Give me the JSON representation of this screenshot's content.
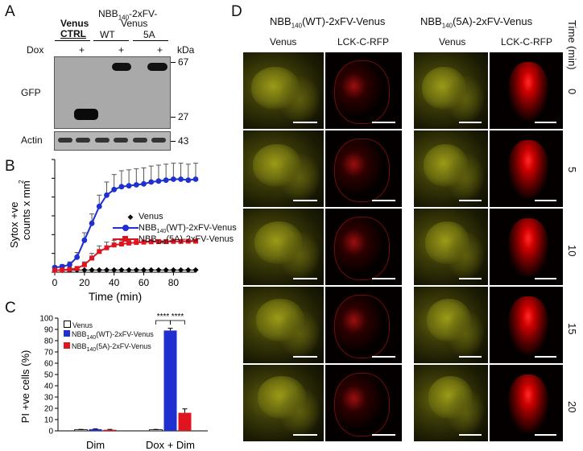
{
  "panels": {
    "a": "A",
    "b": "B",
    "c": "C",
    "d": "D"
  },
  "panelA": {
    "venus_label": "Venus",
    "ctrl_label": "CTRL",
    "construct_label_1": "NBB",
    "construct_sub": "140",
    "construct_label_2": "-2xFV-",
    "construct_label_3": "Venus",
    "wt_label": "WT",
    "fiveA_label": "5A",
    "dox_label": "Dox",
    "plus": "+",
    "kda_label": "kDa",
    "gfp_label": "GFP",
    "actin_label": "Actin",
    "mw_67": "67",
    "mw_27": "27",
    "mw_43": "43"
  },
  "chart_data": [
    {
      "type": "line",
      "ylabel_line1": "Sytox +ve",
      "ylabel_line2": "counts x mm",
      "ylabel_sup": "2",
      "xlabel": "Time (min)",
      "xlim": [
        0,
        95
      ],
      "ylim": [
        0,
        600
      ],
      "xticks": [
        0,
        20,
        40,
        60,
        80
      ],
      "yticks": [
        0,
        100,
        200,
        300,
        400,
        500,
        600
      ],
      "x": [
        0,
        5,
        10,
        15,
        20,
        25,
        30,
        35,
        40,
        45,
        50,
        55,
        60,
        65,
        70,
        75,
        80,
        85,
        90,
        95
      ],
      "series": [
        {
          "name": "Venus",
          "color": "#000000",
          "marker": "diamond",
          "values": [
            10,
            10,
            12,
            12,
            12,
            12,
            12,
            12,
            12,
            12,
            12,
            12,
            12,
            12,
            12,
            12,
            12,
            12,
            12,
            12
          ],
          "errors": [
            2,
            2,
            2,
            2,
            2,
            2,
            2,
            2,
            2,
            2,
            2,
            2,
            2,
            2,
            2,
            2,
            2,
            2,
            2,
            2
          ]
        },
        {
          "name_pre": "NBB",
          "name_sub": "140",
          "name_post": "(WT)-2xFV-Venus",
          "color": "#1f2fd0",
          "marker": "circle",
          "values": [
            25,
            30,
            40,
            80,
            170,
            260,
            350,
            410,
            440,
            455,
            460,
            465,
            470,
            480,
            485,
            490,
            495,
            495,
            490,
            495
          ],
          "errors": [
            8,
            10,
            15,
            25,
            40,
            50,
            60,
            70,
            80,
            85,
            85,
            85,
            85,
            85,
            85,
            85,
            85,
            85,
            85,
            85
          ]
        },
        {
          "name_pre": "NBB",
          "name_sub": "140",
          "name_post": "(5A)-2xFV-Venus",
          "color": "#e0141e",
          "marker": "square",
          "values": [
            10,
            12,
            15,
            20,
            40,
            75,
            110,
            130,
            145,
            150,
            155,
            158,
            160,
            162,
            163,
            163,
            164,
            164,
            165,
            165
          ],
          "errors": [
            3,
            4,
            5,
            8,
            15,
            25,
            30,
            30,
            25,
            20,
            15,
            10,
            8,
            6,
            6,
            6,
            6,
            6,
            6,
            6
          ]
        }
      ]
    },
    {
      "type": "bar",
      "ylabel": "PI +ve cells (%)",
      "ylim": [
        0,
        100
      ],
      "yticks": [
        0,
        10,
        20,
        30,
        40,
        50,
        60,
        70,
        80,
        90,
        100
      ],
      "categories": [
        "Dim",
        "Dox + Dim"
      ],
      "series": [
        {
          "name": "Venus",
          "color": "#ffffff",
          "values": [
            1,
            1
          ],
          "errors": [
            0.3,
            0.3
          ]
        },
        {
          "name_pre": "NBB",
          "name_sub": "140",
          "name_post": "(WT)-2xFV-Venus",
          "color": "#1f2fd0",
          "values": [
            1.5,
            89
          ],
          "errors": [
            0.3,
            2
          ]
        },
        {
          "name_pre": "NBB",
          "name_sub": "140",
          "name_post": "(5A)-2xFV-Venus",
          "color": "#e0141e",
          "values": [
            1,
            16
          ],
          "errors": [
            0.3,
            3.5
          ]
        }
      ],
      "significance": [
        "****",
        "****"
      ]
    }
  ],
  "panelD": {
    "wt_title_pre": "NBB",
    "wt_title_sub": "140",
    "wt_title_post": "(WT)-2xFV-Venus",
    "fa_title_pre": "NBB",
    "fa_title_sub": "140",
    "fa_title_post": "(5A)-2xFV-Venus",
    "venus_col": "Venus",
    "lck_col": "LCK-C-RFP",
    "time_header": "Time (min)",
    "times": [
      "0",
      "5",
      "10",
      "15",
      "20"
    ]
  }
}
